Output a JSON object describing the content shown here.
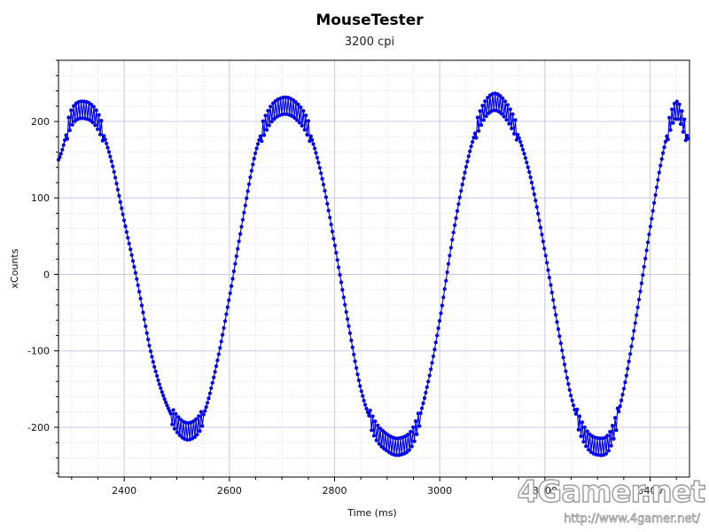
{
  "chart_data": {
    "type": "line",
    "title": "MouseTester",
    "subtitle": "3200 cpi",
    "xlabel": "Time (ms)",
    "ylabel": "xCounts",
    "xlim": [
      2275,
      3475
    ],
    "ylim": [
      -265,
      280
    ],
    "x_ticks": [
      2400,
      2600,
      2800,
      3000,
      3200,
      3400
    ],
    "y_ticks": [
      -200,
      -100,
      0,
      100,
      200
    ],
    "grid": true,
    "series_color": "#0000ee",
    "series": [
      {
        "x": [
          2275,
          2300,
          2325,
          2350,
          2375,
          2400,
          2425,
          2450,
          2475,
          2500,
          2525,
          2550,
          2575,
          2600,
          2625,
          2650,
          2675,
          2700,
          2725,
          2750,
          2775,
          2800,
          2825,
          2850,
          2875,
          2900,
          2925,
          2950,
          2975,
          3000,
          3025,
          3050,
          3075,
          3100,
          3125,
          3150,
          3175,
          3200,
          3225,
          3250,
          3275,
          3300,
          3325,
          3350,
          3375,
          3400,
          3425,
          3450,
          3475
        ],
        "y": [
          150,
          205,
          215,
          200,
          150,
          70,
          -10,
          -100,
          -160,
          -195,
          -205,
          -185,
          -120,
          -30,
          70,
          160,
          205,
          220,
          215,
          190,
          130,
          40,
          -60,
          -150,
          -200,
          -220,
          -225,
          -210,
          -150,
          -60,
          50,
          140,
          200,
          225,
          215,
          180,
          120,
          30,
          -70,
          -160,
          -210,
          -225,
          -215,
          -150,
          -50,
          60,
          160,
          215,
          175
        ]
      }
    ]
  },
  "watermark": {
    "logo": "4Gamer.net",
    "url": "http://www.4gamer.net/"
  }
}
